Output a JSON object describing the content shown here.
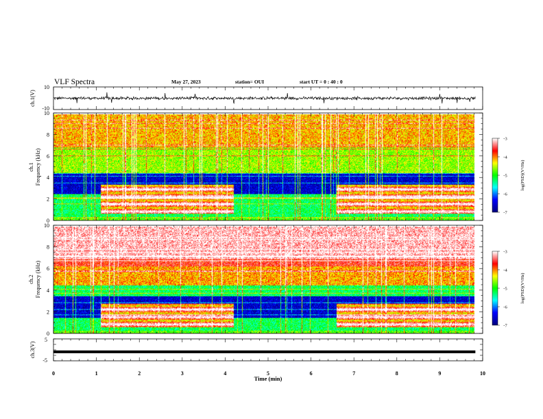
{
  "header": {
    "title": "VLF Spectra",
    "date": "May 27, 2023",
    "station": "station= OUI",
    "start": "start  UT =   0 : 40 : 0"
  },
  "chart_data": [
    {
      "id": "ch1_waveform",
      "type": "line",
      "ylabel": "ch.1(V)",
      "ylim": [
        -10,
        10
      ],
      "y_ticks": [
        "10",
        "-10"
      ],
      "xlim": [
        0,
        9.83
      ],
      "series": [
        {
          "x": [
            0,
            9.83
          ],
          "values": [
            0,
            0
          ],
          "color": "#000000"
        }
      ],
      "noise_amplitude": 1.0,
      "spike_times": [
        0.55,
        1.25,
        1.35,
        2.6,
        3.3,
        4.2,
        5.45,
        6.3,
        9.0,
        9.05,
        9.4,
        9.7
      ]
    },
    {
      "id": "ch1_spectrogram",
      "type": "heatmap",
      "ylabel": "ch.1",
      "ylabel2": "Frequency  (kHz)",
      "ylim": [
        0,
        10
      ],
      "y_ticks": [
        "0",
        "2",
        "4",
        "6",
        "8",
        "10"
      ],
      "xlim": [
        0,
        9.83
      ],
      "colorbar": {
        "label": "log(PSD)(V²/Hz)",
        "range": [
          -7,
          -3
        ],
        "ticks": [
          "-3",
          "-4",
          "-5",
          "-6",
          "-7"
        ],
        "colormap": [
          "#000080",
          "#0000ff",
          "#00ffff",
          "#00ff00",
          "#ffff00",
          "#ff0000",
          "#ffffff"
        ]
      },
      "features": {
        "high_band_level": -4.4,
        "quiet_band_khz": [
          2.5,
          4.5
        ],
        "quiet_band_level": -6.6,
        "bright_band_khz": [
          0.7,
          3.4
        ],
        "bright_intervals_min": [
          [
            1.1,
            4.2
          ],
          [
            6.6,
            9.83
          ]
        ],
        "bright_level": -3.6
      }
    },
    {
      "id": "ch2_spectrogram",
      "type": "heatmap",
      "ylabel": "ch.2",
      "ylabel2": "Frequency  (kHz)",
      "ylim": [
        0,
        10
      ],
      "y_ticks": [
        "0",
        "2",
        "4",
        "6",
        "8",
        "10"
      ],
      "xlim": [
        0,
        9.83
      ],
      "colorbar": {
        "label": "log(PSD)(V²/Hz)",
        "range": [
          -7,
          -3
        ],
        "ticks": [
          "-3",
          "-4",
          "-5",
          "-6",
          "-7"
        ],
        "colormap": [
          "#000080",
          "#0000ff",
          "#00ffff",
          "#00ff00",
          "#ffff00",
          "#ff0000",
          "#ffffff"
        ]
      },
      "features": {
        "high_band_level": -3.9,
        "boundary_line_khz": 6.3,
        "quiet_band_khz": [
          1.5,
          3.5
        ],
        "quiet_band_level": -6.6,
        "bright_band_khz": [
          0.6,
          2.8
        ],
        "bright_intervals_min": [
          [
            1.1,
            4.2
          ],
          [
            6.6,
            9.83
          ]
        ],
        "bright_level": -3.6
      }
    },
    {
      "id": "ch3_waveform",
      "type": "line",
      "ylabel": "ch.3(V)",
      "ylim": [
        -5,
        5
      ],
      "y_ticks": [
        "5",
        "0",
        "-5"
      ],
      "xlim": [
        0,
        9.83
      ],
      "series": [
        {
          "x": [
            0,
            9.83
          ],
          "values": [
            -0.9,
            -0.9
          ],
          "color": "#000000"
        }
      ]
    }
  ],
  "x_axis": {
    "label": "Time  (min)",
    "ticks": [
      "0",
      "1",
      "2",
      "3",
      "4",
      "5",
      "6",
      "7",
      "8",
      "9",
      "10"
    ],
    "range": [
      0,
      10
    ]
  }
}
